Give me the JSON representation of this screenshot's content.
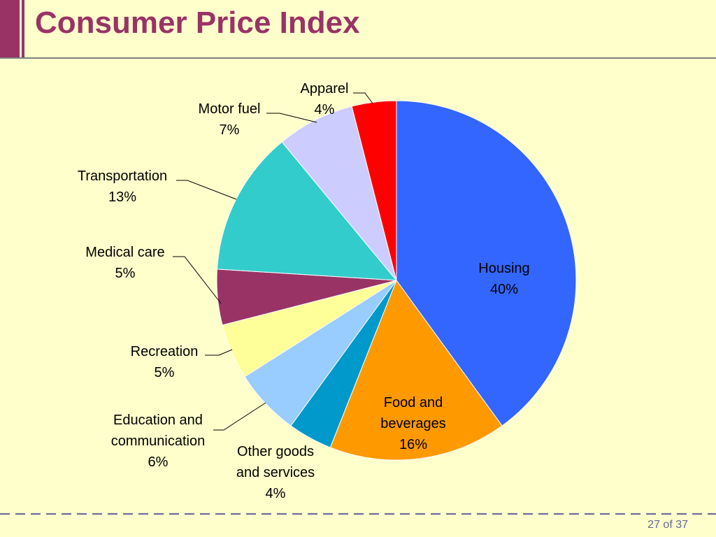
{
  "slide": {
    "title": "Consumer Price Index",
    "page_number": "27 of 37"
  },
  "colors": {
    "background": "#FFFFCC",
    "title": "#993366",
    "accent": "#993366",
    "footer_dash": "#666699"
  },
  "chart_data": {
    "type": "pie",
    "start_angle_deg": 0,
    "direction": "clockwise",
    "legend": "none",
    "slices": [
      {
        "label_lines": [
          "Housing",
          "40%"
        ],
        "value": 40,
        "color": "#3366FF"
      },
      {
        "label_lines": [
          "Food and",
          "beverages",
          "16%"
        ],
        "value": 16,
        "color": "#FF9900"
      },
      {
        "label_lines": [
          "Other goods",
          "and services",
          "4%"
        ],
        "value": 4,
        "color": "#0099CC"
      },
      {
        "label_lines": [
          "Education and",
          "communication",
          "6%"
        ],
        "value": 6,
        "color": "#99CCFF"
      },
      {
        "label_lines": [
          "Recreation",
          "5%"
        ],
        "value": 5,
        "color": "#FFFF99"
      },
      {
        "label_lines": [
          "Medical care",
          "5%"
        ],
        "value": 5,
        "color": "#993366"
      },
      {
        "label_lines": [
          "Transportation",
          "13%"
        ],
        "value": 13,
        "color": "#33CCCC"
      },
      {
        "label_lines": [
          "Motor fuel",
          "7%"
        ],
        "value": 7,
        "color": "#CCCCFF"
      },
      {
        "label_lines": [
          "Apparel",
          "4%"
        ],
        "value": 4,
        "color": "#FF0000"
      }
    ]
  }
}
